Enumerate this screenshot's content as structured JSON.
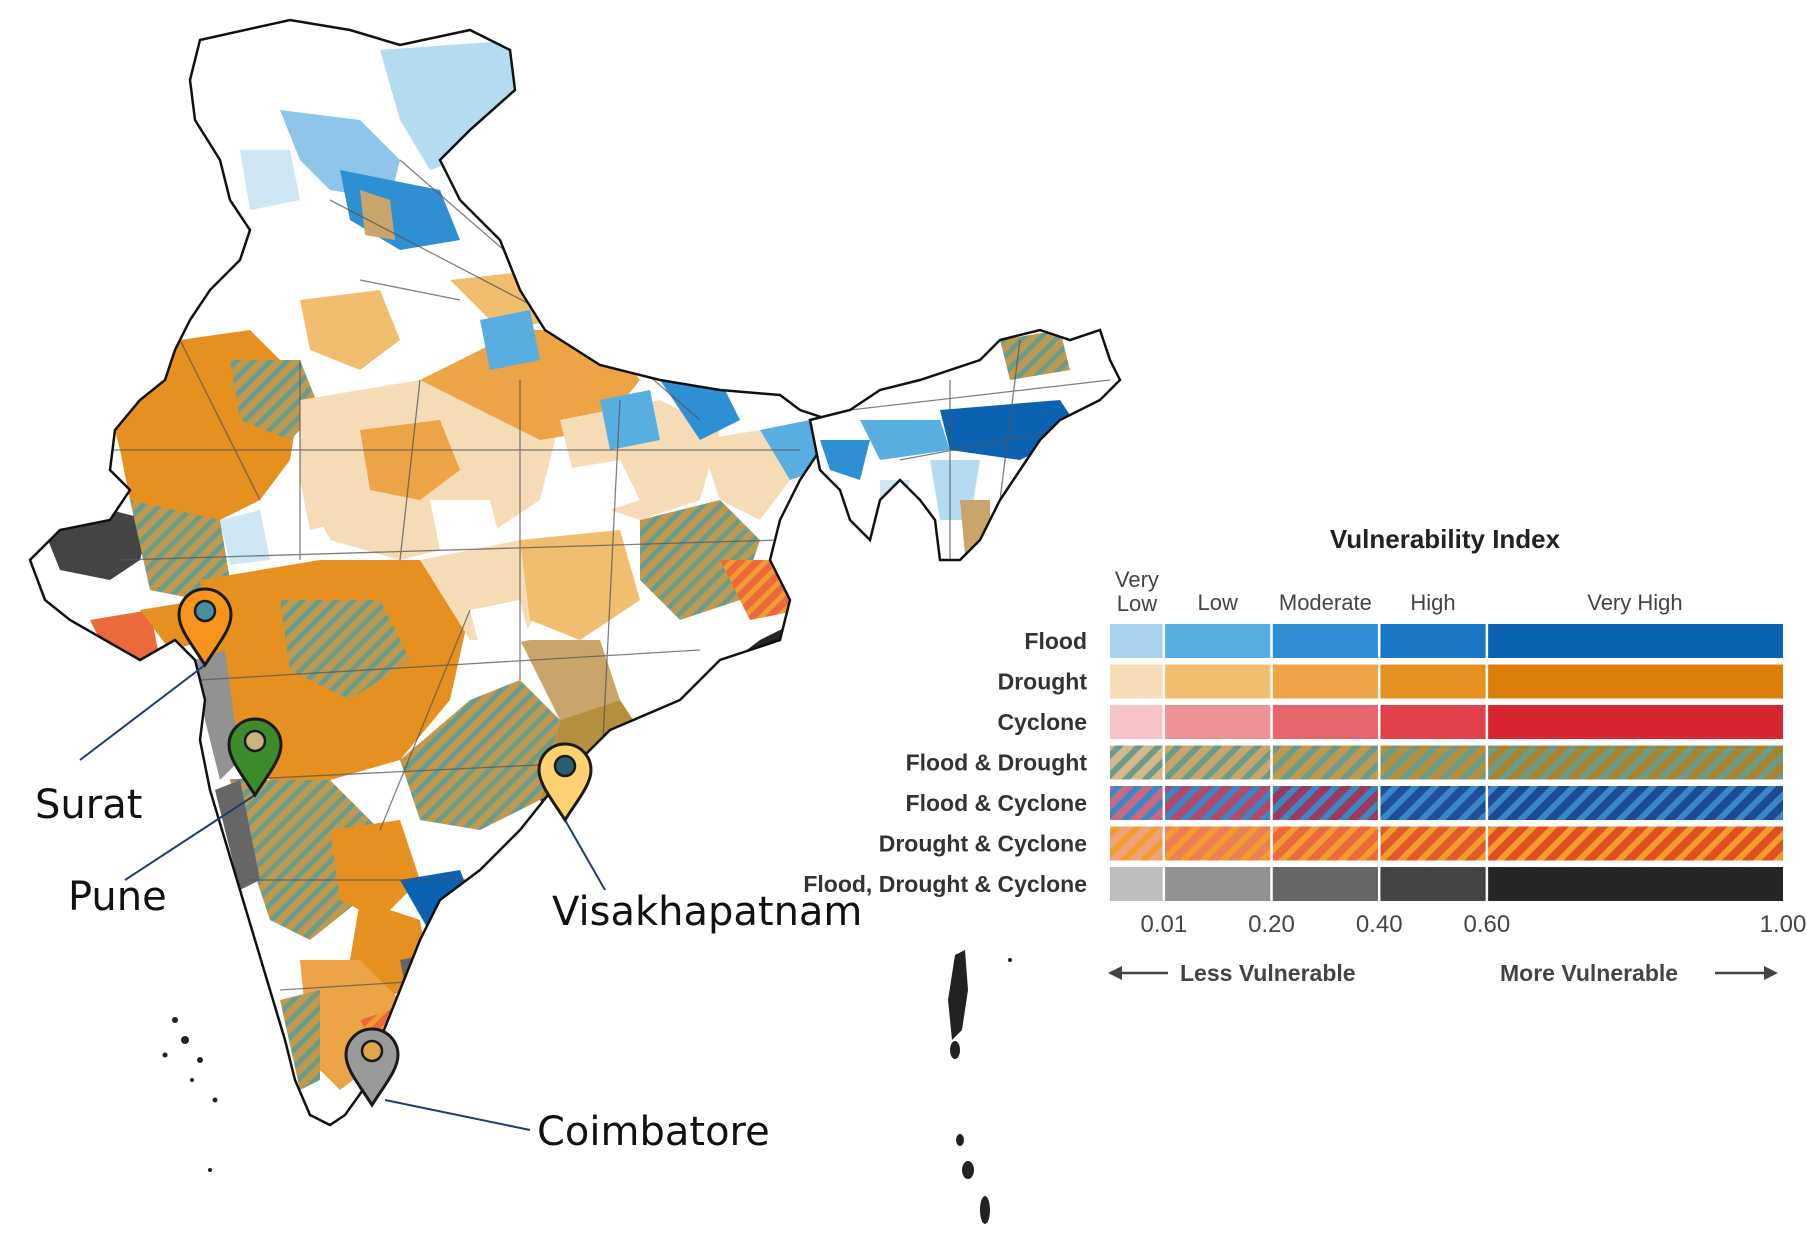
{
  "title": "Vulnerability Index",
  "categories": [
    "Very Low",
    "Low",
    "Moderate",
    "High",
    "Very High"
  ],
  "ticks": [
    "0.01",
    "0.20",
    "0.40",
    "0.60",
    "1.00"
  ],
  "direction": {
    "less": "Less Vulnerable",
    "more": "More Vulnerable"
  },
  "rows": [
    {
      "label": "Flood",
      "pattern": "solid",
      "colors": [
        "#a8d3ee",
        "#58aee0",
        "#2e8fd3",
        "#1a78c6",
        "#0b62b3"
      ]
    },
    {
      "label": "Drought",
      "pattern": "solid",
      "colors": [
        "#f6dcb6",
        "#f1bd6e",
        "#eca446",
        "#e6911f",
        "#dc7e08"
      ]
    },
    {
      "label": "Cyclone",
      "pattern": "solid",
      "colors": [
        "#f6c3c8",
        "#ee9298",
        "#e8676f",
        "#e0414b",
        "#d92530"
      ]
    },
    {
      "label": "Flood & Drought",
      "pattern": "hatch",
      "colors": [
        "#d7b88a",
        "#c9a56b",
        "#c0994f",
        "#b48f3e",
        "#a98430"
      ],
      "stripe": "#6a9c8c"
    },
    {
      "label": "Flood & Cyclone",
      "pattern": "hatch",
      "colors": [
        "#c86a82",
        "#b14a6a",
        "#9a3a5e",
        "#1f4f9a",
        "#1c4b96"
      ],
      "stripe": "#3a86c8"
    },
    {
      "label": "Drought & Cyclone",
      "pattern": "hatch",
      "colors": [
        "#f2a27a",
        "#ee7f55",
        "#ea6a3e",
        "#e35a2a",
        "#df4f1f"
      ],
      "stripe": "#f29b2e"
    },
    {
      "label": "Flood, Drought & Cyclone",
      "pattern": "solid",
      "colors": [
        "#bdbdbd",
        "#929292",
        "#666666",
        "#444444",
        "#262626"
      ]
    }
  ],
  "cities": [
    {
      "name": "Surat",
      "pin_color": "#f7941d",
      "dot_color": "#4a8f9c"
    },
    {
      "name": "Pune",
      "pin_color": "#3d8a2a",
      "dot_color": "#c9b37a"
    },
    {
      "name": "Visakhapatnam",
      "pin_color": "#fcd271",
      "dot_color": "#2a5d70"
    },
    {
      "name": "Coimbatore",
      "pin_color": "#9a9a9a",
      "dot_color": "#e0a64a"
    }
  ],
  "colors": {
    "map_outline": "#111111",
    "white_region": "#ffffff",
    "leader_line": "#1f3b73",
    "legend_divider": "#ffffff"
  }
}
